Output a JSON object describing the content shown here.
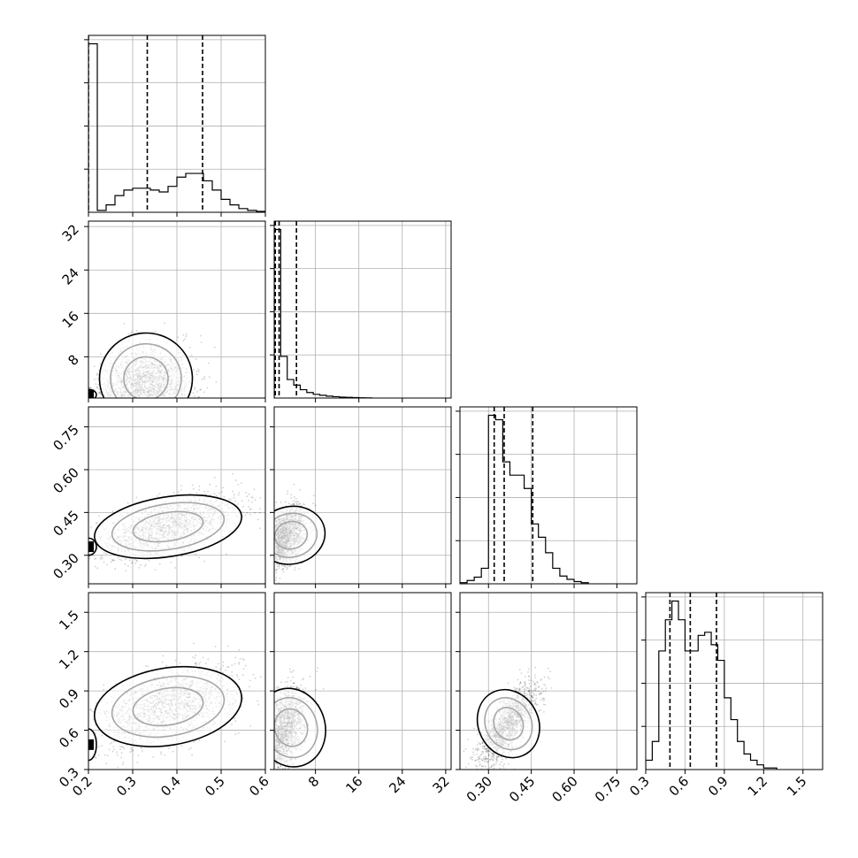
{
  "chart_data": {
    "type": "corner",
    "description_free": true,
    "params": [
      {
        "ticks": [
          0.2,
          0.3,
          0.4,
          0.5,
          0.6
        ],
        "tick_labels": [
          "0.2",
          "0.3",
          "0.4",
          "0.5",
          "0.6"
        ],
        "range": [
          0.2,
          0.6
        ]
      },
      {
        "ticks": [
          8,
          16,
          24,
          32
        ],
        "tick_labels": [
          "8",
          "16",
          "24",
          "32"
        ],
        "range": [
          0.4,
          33
        ]
      },
      {
        "ticks": [
          0.3,
          0.45,
          0.6,
          0.75
        ],
        "tick_labels": [
          "0.30",
          "0.45",
          "0.60",
          "0.75"
        ],
        "range": [
          0.2,
          0.82
        ]
      },
      {
        "ticks": [
          0.3,
          0.6,
          0.9,
          1.2,
          1.5
        ],
        "tick_labels": [
          "0.3",
          "0.6",
          "0.9",
          "1.2",
          "1.5"
        ],
        "range": [
          0.3,
          1.65
        ]
      }
    ],
    "histograms": [
      {
        "param": 0,
        "quantiles": [
          0.2,
          0.333,
          0.458
        ],
        "bins": [
          0.2,
          0.22,
          0.24,
          0.26,
          0.28,
          0.3,
          0.32,
          0.34,
          0.36,
          0.38,
          0.4,
          0.42,
          0.44,
          0.46,
          0.48,
          0.5,
          0.52,
          0.54,
          0.56,
          0.58,
          0.6
        ],
        "counts": [
          182,
          2,
          8,
          18,
          24,
          26,
          26,
          24,
          22,
          28,
          38,
          42,
          42,
          34,
          24,
          14,
          8,
          4,
          2,
          1
        ]
      },
      {
        "param": 1,
        "quantiles": [
          0.6,
          1.3,
          4.5
        ],
        "bins": [
          0.4,
          1.6,
          2.8,
          4.0,
          5.2,
          6.4,
          7.6,
          8.8,
          10.0,
          11.2,
          12.4,
          13.6,
          14.8,
          16.0,
          17.2,
          18.4
        ],
        "counts": [
          182,
          45,
          20,
          14,
          9,
          6,
          4,
          3,
          2,
          1.5,
          1,
          0.7,
          0.5,
          0.3,
          0.2
        ]
      },
      {
        "param": 2,
        "quantiles": [
          0.32,
          0.355,
          0.455
        ],
        "bins": [
          0.2,
          0.225,
          0.25,
          0.275,
          0.3,
          0.325,
          0.35,
          0.375,
          0.4,
          0.425,
          0.45,
          0.475,
          0.5,
          0.525,
          0.55,
          0.575,
          0.6,
          0.625,
          0.65
        ],
        "counts": [
          1,
          3,
          6,
          14,
          152,
          148,
          110,
          98,
          98,
          86,
          54,
          42,
          28,
          14,
          7,
          4,
          2,
          1
        ]
      },
      {
        "param": 3,
        "quantiles": [
          0.485,
          0.64,
          0.84
        ],
        "bins": [
          0.3,
          0.35,
          0.4,
          0.45,
          0.5,
          0.55,
          0.6,
          0.65,
          0.7,
          0.75,
          0.8,
          0.85,
          0.9,
          0.95,
          1.0,
          1.05,
          1.1,
          1.15,
          1.2,
          1.25,
          1.3
        ],
        "counts": [
          6,
          18,
          76,
          96,
          108,
          96,
          76,
          76,
          86,
          88,
          80,
          70,
          46,
          32,
          18,
          10,
          6,
          3,
          1,
          1
        ]
      }
    ],
    "scatter_2d": [
      {
        "x_param": 0,
        "y_param": 1,
        "main": {
          "mean": [
            0.33,
            4.0
          ],
          "sd": [
            0.05,
            4.0
          ],
          "corr": 0.1
        },
        "spike_x": 0.2,
        "spike_y_mean": 1.0,
        "spike_y_sd": 0.4
      },
      {
        "x_param": 0,
        "y_param": 2,
        "main": {
          "mean": [
            0.38,
            0.4
          ],
          "sd": [
            0.08,
            0.055
          ],
          "corr": 0.6
        },
        "spike_x": 0.2,
        "spike_y_mean": 0.33,
        "spike_y_sd": 0.015
      },
      {
        "x_param": 0,
        "y_param": 3,
        "main": {
          "mean": [
            0.38,
            0.78
          ],
          "sd": [
            0.08,
            0.15
          ],
          "corr": 0.5
        },
        "spike_x": 0.2,
        "spike_y_mean": 0.49,
        "spike_y_sd": 0.06
      },
      {
        "x_param": 1,
        "y_param": 2,
        "main": {
          "mean": [
            3.5,
            0.37
          ],
          "sd": [
            3.0,
            0.05
          ],
          "corr": 0.4
        }
      },
      {
        "x_param": 1,
        "y_param": 3,
        "main": {
          "mean": [
            3.5,
            0.62
          ],
          "sd": [
            3.0,
            0.15
          ],
          "corr": 0.4
        }
      },
      {
        "x_param": 2,
        "y_param": 3,
        "main": {
          "mean": [
            0.37,
            0.65
          ],
          "sd": [
            0.05,
            0.15
          ],
          "corr": 0.75
        }
      }
    ],
    "grid": true
  }
}
